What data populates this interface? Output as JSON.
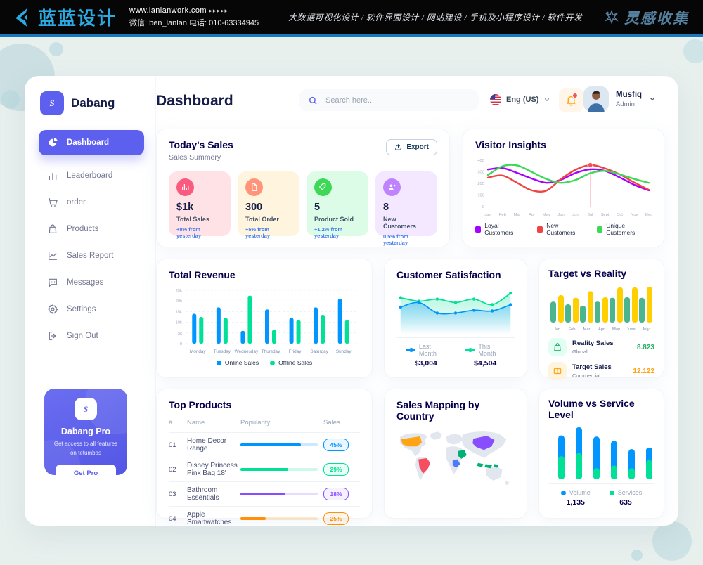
{
  "theme": {
    "accent": "#5D5FEF",
    "title_dark": "#151D48",
    "heading": "#05004E",
    "muted": "#737791",
    "trend_blue": "#4079ED",
    "banner_blue": "#2BAAE2",
    "banner_collect": "#55809f"
  },
  "banner": {
    "logo_text": "蓝蓝设计",
    "website": "www.lanlanwork.com",
    "arrows": "▸▸▸▸▸",
    "contact": "微信: ben_lanlan   电话: 010-63334945",
    "services": "大数据可视化设计 / 软件界面设计 / 网站建设 / 手机及小程序设计 / 软件开发",
    "collect": "灵感收集"
  },
  "sidebar": {
    "brand": "Dabang",
    "items": [
      {
        "label": "Dashboard",
        "icon": "dashboard",
        "active": true
      },
      {
        "label": "Leaderboard",
        "icon": "leaderboard",
        "active": false
      },
      {
        "label": "order",
        "icon": "order",
        "active": false
      },
      {
        "label": "Products",
        "icon": "products",
        "active": false
      },
      {
        "label": "Sales Report",
        "icon": "sales-report",
        "active": false
      },
      {
        "label": "Messages",
        "icon": "messages",
        "active": false
      },
      {
        "label": "Settings",
        "icon": "settings",
        "active": false
      },
      {
        "label": "Sign Out",
        "icon": "sign-out",
        "active": false
      }
    ],
    "pro": {
      "title": "Dabang Pro",
      "desc": "Get access to all features on tetumbas",
      "button": "Get Pro"
    }
  },
  "header": {
    "title": "Dashboard",
    "search_placeholder": "Search here...",
    "language": "Eng (US)",
    "user": {
      "name": "Musfiq",
      "role": "Admin"
    }
  },
  "today_sales": {
    "title": "Today's Sales",
    "subtitle": "Sales Summery",
    "export_label": "Export",
    "cards": [
      {
        "value": "$1k",
        "label": "Total Sales",
        "trend": "+8% from yesterday",
        "bg": "#FFE2E5",
        "icon_bg": "#FA5A7D",
        "icon": "bar-chart"
      },
      {
        "value": "300",
        "label": "Total Order",
        "trend": "+5% from yesterday",
        "bg": "#FFF4DE",
        "icon_bg": "#FF947A",
        "icon": "file"
      },
      {
        "value": "5",
        "label": "Product Sold",
        "trend": "+1,2% from yesterday",
        "bg": "#DCFCE7",
        "icon_bg": "#3CD856",
        "icon": "tag"
      },
      {
        "value": "8",
        "label": "New Customers",
        "trend": "0,5% from yesterday",
        "bg": "#F3E8FF",
        "icon_bg": "#BF83FF",
        "icon": "new-user"
      }
    ]
  },
  "chart_data": [
    {
      "id": "visitor_insights",
      "type": "line",
      "title": "Visitor Insights",
      "x": [
        "Jan",
        "Feb",
        "Mar",
        "Apr",
        "May",
        "Jun",
        "Jun",
        "Jul",
        "Sept",
        "Oct",
        "Nov",
        "Dec"
      ],
      "ylim": [
        0,
        400
      ],
      "yticks": [
        0,
        100,
        200,
        300,
        400
      ],
      "grid": false,
      "legend_position": "bottom",
      "series": [
        {
          "name": "Loyal Customers",
          "color": "#A700FF",
          "values": [
            320,
            332,
            290,
            242,
            205,
            232,
            290,
            322,
            308,
            252,
            188,
            140
          ]
        },
        {
          "name": "New Customers",
          "color": "#EF4444",
          "values": [
            250,
            268,
            205,
            140,
            138,
            238,
            318,
            358,
            330,
            278,
            208,
            145
          ]
        },
        {
          "name": "Unique Customers",
          "color": "#3CD856",
          "values": [
            272,
            348,
            355,
            298,
            238,
            205,
            230,
            288,
            308,
            278,
            238,
            205
          ]
        }
      ],
      "marker": {
        "series": 1,
        "index": 7
      }
    },
    {
      "id": "total_revenue",
      "type": "bar",
      "title": "Total Revenue",
      "categories": [
        "Monday",
        "Tuesday",
        "Wednesday",
        "Thursday",
        "Friday",
        "Saturday",
        "Sunday"
      ],
      "ylim": [
        0,
        25000
      ],
      "ytick_labels": [
        "0",
        "5k",
        "10k",
        "15k",
        "20k",
        "25k"
      ],
      "grid": true,
      "legend_position": "bottom",
      "series": [
        {
          "name": "Online Sales",
          "color": "#0095FF",
          "values": [
            14000,
            17000,
            6000,
            16000,
            12000,
            17000,
            21000
          ]
        },
        {
          "name": "Offline Sales",
          "color": "#00E096",
          "values": [
            12500,
            12000,
            22500,
            6500,
            11000,
            13500,
            11000
          ]
        }
      ]
    },
    {
      "id": "customer_satisfaction",
      "type": "area",
      "title": "Customer Satisfaction",
      "ylim": [
        0,
        100
      ],
      "grid": false,
      "legend_position": "bottom",
      "series": [
        {
          "name": "Last Month",
          "color": "#0095FF",
          "total": "$3,004",
          "values": [
            55,
            68,
            38,
            38,
            46,
            44,
            62
          ]
        },
        {
          "name": "This Month",
          "color": "#00E096",
          "total": "$4,504",
          "values": [
            82,
            72,
            78,
            68,
            78,
            62,
            95
          ]
        }
      ]
    },
    {
      "id": "target_vs_reality",
      "type": "bar",
      "title": "Target vs Reality",
      "categories": [
        "Jan",
        "Feb",
        "Mar",
        "Apr",
        "May",
        "June",
        "July"
      ],
      "ylim": [
        0,
        14
      ],
      "grid": false,
      "series": [
        {
          "name": "Reality Sales",
          "color": "#4AB58E",
          "values": [
            8,
            7,
            6.5,
            8,
            9.5,
            9.7,
            9.5
          ]
        },
        {
          "name": "Target Sales",
          "color": "#FFCF00",
          "values": [
            10.5,
            9.5,
            12,
            9.7,
            13.5,
            13.5,
            13.7
          ]
        }
      ],
      "footer": [
        {
          "label": "Reality Sales",
          "sub": "Global",
          "value": "8.823",
          "value_color": "#27AE60",
          "icon": "bag",
          "icon_bg": "#E2FFF3",
          "icon_color": "#27AE60"
        },
        {
          "label": "Target Sales",
          "sub": "Commercial",
          "value": "12.122",
          "value_color": "#FFA412",
          "icon": "ticket",
          "icon_bg": "#FFF4DE",
          "icon_color": "#FFA412"
        }
      ]
    },
    {
      "id": "top_products",
      "type": "table",
      "title": "Top Products",
      "headers": [
        "#",
        "Name",
        "Popularity",
        "Sales"
      ],
      "rows": [
        {
          "num": "01",
          "name": "Home Decor Range",
          "popularity": 78,
          "sales": "45%",
          "color": "#0095FF"
        },
        {
          "num": "02",
          "name": "Disney Princess Pink Bag 18'",
          "popularity": 62,
          "sales": "29%",
          "color": "#00E096"
        },
        {
          "num": "03",
          "name": "Bathroom Essentials",
          "popularity": 58,
          "sales": "18%",
          "color": "#884DFF"
        },
        {
          "num": "04",
          "name": "Apple Smartwatches",
          "popularity": 33,
          "sales": "25%",
          "color": "#FF8F0D"
        }
      ]
    },
    {
      "id": "sales_mapping",
      "type": "map",
      "title": "Sales Mapping by Country",
      "countries": [
        {
          "name": "United States",
          "color": "#FFA412"
        },
        {
          "name": "Brazil",
          "color": "#F64E60"
        },
        {
          "name": "Saudi Arabia",
          "color": "#00B074"
        },
        {
          "name": "DR Congo",
          "color": "#4A7CF6"
        },
        {
          "name": "China",
          "color": "#884DFF"
        },
        {
          "name": "Indonesia",
          "color": "#00B074"
        }
      ]
    },
    {
      "id": "volume_service",
      "type": "stacked_bar",
      "title": "Volume vs Service Level",
      "ylim": [
        0,
        95
      ],
      "legend_position": "bottom",
      "series": [
        {
          "name": "Volume",
          "color": "#0095FF",
          "total": "1,135",
          "values": [
            38,
            47,
            58,
            45,
            35,
            23
          ]
        },
        {
          "name": "Services",
          "color": "#00E096",
          "total": "635",
          "values": [
            42,
            48,
            20,
            25,
            20,
            35
          ]
        }
      ]
    }
  ]
}
